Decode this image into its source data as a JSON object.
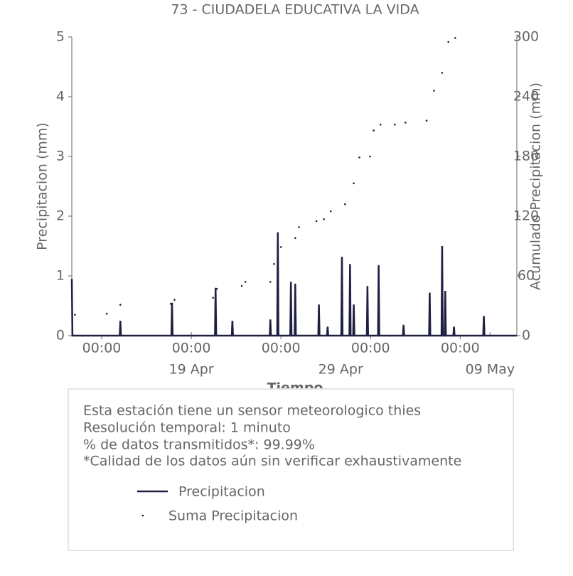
{
  "chart_data": {
    "type": "line",
    "title": "73 - CIUDADELA EDUCATIVA LA VIDA",
    "xlabel": "Tiempo",
    "ylabel": "Precipitacion (mm)",
    "y2label": "Acumulado Precipitacion (mm)",
    "xlim": [
      "04-11 00:00",
      "05-10 19:00"
    ],
    "xticks": [
      {
        "value": "04-13 00:00",
        "label": "00:00"
      },
      {
        "value": "04-19 00:00",
        "label": "00:00"
      },
      {
        "value": "04-25 00:00",
        "label": "00:00"
      },
      {
        "value": "05-01 00:00",
        "label": "00:00"
      },
      {
        "value": "05-07 00:00",
        "label": "00:00"
      }
    ],
    "xticks_dates": [
      {
        "value": "04-19 00:00",
        "label": "19 Apr"
      },
      {
        "value": "04-29 00:00",
        "label": "29 Apr"
      },
      {
        "value": "05-09 00:00",
        "label": "09 May"
      }
    ],
    "ylim": [
      0,
      5
    ],
    "yticks": [
      0,
      1,
      2,
      3,
      4,
      5
    ],
    "y2lim": [
      0,
      300
    ],
    "y2ticks": [
      0,
      60,
      120,
      180,
      240,
      300
    ],
    "series": [
      {
        "name": "Precipitacion",
        "color": "#1f2041",
        "marker": "none",
        "x": [
          "04-11 00:00",
          "04-11 01:00",
          "04-14 05:00",
          "04-14 06:00",
          "04-14 07:00",
          "04-17 16:00",
          "04-17 17:00",
          "04-17 18:00",
          "04-20 14:00",
          "04-20 15:00",
          "04-20 16:00",
          "04-21 17:00",
          "04-21 18:00",
          "04-21 19:00",
          "04-24 06:00",
          "04-24 07:00",
          "04-24 08:00",
          "04-24 18:00",
          "04-24 19:00",
          "04-24 20:00",
          "04-25 15:00",
          "04-25 16:00",
          "04-25 17:00",
          "04-25 22:00",
          "04-25 23:00",
          "04-26 00:00",
          "04-27 12:00",
          "04-27 13:00",
          "04-27 14:00",
          "04-28 02:00",
          "04-28 03:00",
          "04-28 04:00",
          "04-29 01:00",
          "04-29 02:00",
          "04-29 03:00",
          "04-29 14:00",
          "04-29 15:00",
          "04-29 16:00",
          "04-29 20:00",
          "04-29 21:00",
          "04-29 22:00",
          "04-30 18:00",
          "04-30 19:00",
          "04-30 20:00",
          "05-01 12:00",
          "05-01 13:00",
          "05-01 14:00",
          "05-03 04:00",
          "05-03 05:00",
          "05-03 06:00",
          "05-04 22:00",
          "05-04 23:00",
          "05-05 00:00",
          "05-05 18:00",
          "05-05 19:00",
          "05-05 20:00",
          "05-05 23:00",
          "05-06 00:00",
          "05-06 01:00",
          "05-06 13:00",
          "05-06 14:00",
          "05-06 15:00",
          "05-08 13:00",
          "05-08 14:00",
          "05-08 15:00",
          "05-10 19:00"
        ],
        "values": [
          0.95,
          0,
          0,
          0.25,
          0,
          0,
          0.55,
          0,
          0,
          0.8,
          0,
          0,
          0.25,
          0,
          0,
          0.27,
          0,
          0,
          1.73,
          0,
          0,
          0.9,
          0,
          0,
          0.87,
          0,
          0,
          0.52,
          0,
          0,
          0.15,
          0,
          0,
          1.32,
          0,
          0,
          1.2,
          0,
          0,
          0.52,
          0,
          0,
          0.83,
          0,
          0,
          1.18,
          0,
          0,
          0.18,
          0,
          0,
          0.72,
          0,
          0,
          1.5,
          0,
          0,
          0.75,
          0,
          0,
          0.15,
          0,
          0,
          0.33,
          0,
          0
        ]
      },
      {
        "name": "Suma Precipitacion",
        "color": "#1f2041",
        "marker": "dot",
        "axis": "y2",
        "x": [
          "04-11 05:00",
          "04-13 08:00",
          "04-14 06:00",
          "04-17 15:00",
          "04-17 21:00",
          "04-20 11:00",
          "04-20 17:00",
          "04-22 09:00",
          "04-22 15:00",
          "04-24 07:00",
          "04-24 13:00",
          "04-25 00:00",
          "04-25 23:00",
          "04-26 05:00",
          "04-27 09:00",
          "04-27 21:00",
          "04-28 08:00",
          "04-29 07:00",
          "04-29 21:00",
          "04-30 06:00",
          "04-30 23:00",
          "05-01 05:00",
          "05-01 16:00",
          "05-02 15:00",
          "05-03 08:00",
          "05-04 18:00",
          "05-05 06:00",
          "05-05 19:00",
          "05-06 05:00",
          "05-06 16:00"
        ],
        "values": [
          21,
          22,
          31,
          32,
          36,
          38,
          47,
          50,
          54,
          54,
          72,
          89,
          98,
          109,
          115,
          117,
          125,
          132,
          153,
          179,
          180,
          206,
          212,
          212,
          214,
          216,
          246,
          264,
          295,
          299
        ]
      }
    ],
    "annotations": [
      "Esta estación tiene un sensor meteorologico thies",
      "Resolución temporal: 1 minuto",
      "% de datos transmitidos*: 99.99%",
      "*Calidad de los datos aún sin verificar exhaustivamente"
    ]
  }
}
